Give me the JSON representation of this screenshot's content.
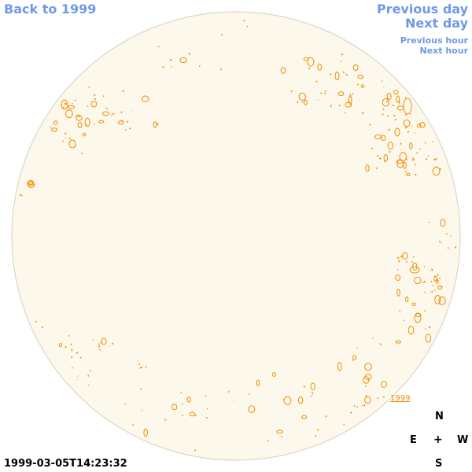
{
  "nav": {
    "back_label": "Back to 1999",
    "prev_day_label": "Previous day",
    "next_day_label": "Next day",
    "prev_hour_label": "Previous hour",
    "next_hour_label": "Next hour"
  },
  "timestamp": "1999-03-05T14:23:32",
  "year_marker": "1999",
  "compass": {
    "north": "N",
    "east": "E",
    "west": "W",
    "south": "S",
    "center": "+"
  },
  "colors": {
    "disk_fill": "#fdf8ec",
    "disk_stroke": "#d8cfbd",
    "contour": "#f08c00",
    "link": "#6f9ae6"
  }
}
